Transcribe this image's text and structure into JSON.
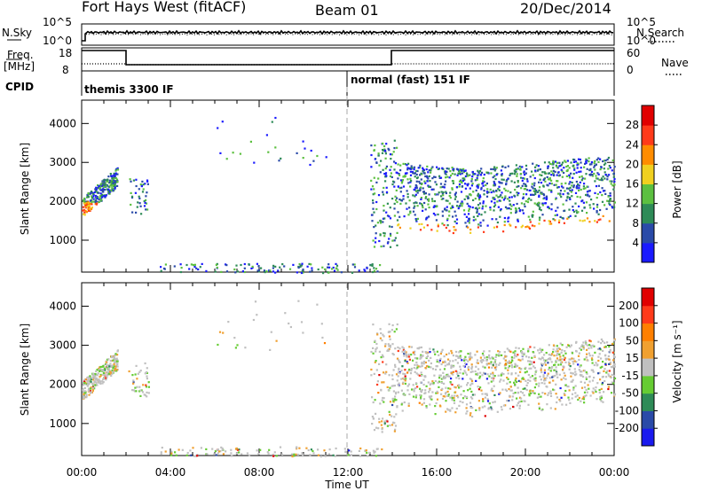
{
  "header": {
    "radar": "Fort Hays West (fitACF)",
    "beam": "Beam 01",
    "date": "20/Dec/2014"
  },
  "top_panels": {
    "nsky_label": "N.Sky",
    "nsearch_label": "N.Search",
    "freq_label_line1": "Freq.",
    "freq_label_line2": "[MHz]",
    "nave_label": "Nave",
    "cpid_label": "CPID",
    "nsky_ticks": [
      "10^5",
      "10^0"
    ],
    "nsearch_ticks": [
      "10^5",
      "10^0"
    ],
    "freq_ticks": [
      "18",
      "8"
    ],
    "nave_ticks": [
      "60",
      "0"
    ],
    "cpid_segments": [
      {
        "start_hour": 0,
        "end_hour": 12,
        "label": "themis 3300 IF"
      },
      {
        "start_hour": 12,
        "end_hour": 24,
        "label": "normal (fast) 151 IF"
      }
    ]
  },
  "chart_data": [
    {
      "type": "heatmap",
      "name": "power",
      "ylabel": "Slant Range [km]",
      "colorbar_label": "Power [dB]",
      "xlim": [
        0,
        24
      ],
      "ylim": [
        180,
        4600
      ],
      "yticks": [
        1000,
        2000,
        3000,
        4000
      ],
      "colorbar_ticks": [
        "4",
        "8",
        "12",
        "16",
        "20",
        "24",
        "28"
      ],
      "colorbar_colors": [
        "#1a1aff",
        "#2a4aa8",
        "#2e8b57",
        "#5cc040",
        "#f0d020",
        "#ff8c00",
        "#ff3a1a",
        "#e00000"
      ]
    },
    {
      "type": "heatmap",
      "name": "velocity",
      "xlabel": "Time UT",
      "ylabel": "Slant Range [km]",
      "colorbar_label": "Velocity [m s⁻¹]",
      "xlim": [
        0,
        24
      ],
      "xticks": [
        "00:00",
        "04:00",
        "08:00",
        "12:00",
        "16:00",
        "20:00",
        "00:00"
      ],
      "ylim": [
        180,
        4600
      ],
      "yticks": [
        1000,
        2000,
        3000,
        4000
      ],
      "colorbar_ticks": [
        "200",
        "100",
        "50",
        "15",
        "-15",
        "-50",
        "-100",
        "-200"
      ],
      "colorbar_colors": [
        "#1a1aee",
        "#2a4aa8",
        "#2e8b57",
        "#66cc33",
        "#c0c0c0",
        "#f0a030",
        "#ff7f00",
        "#ff3a1a",
        "#e00000"
      ]
    }
  ]
}
